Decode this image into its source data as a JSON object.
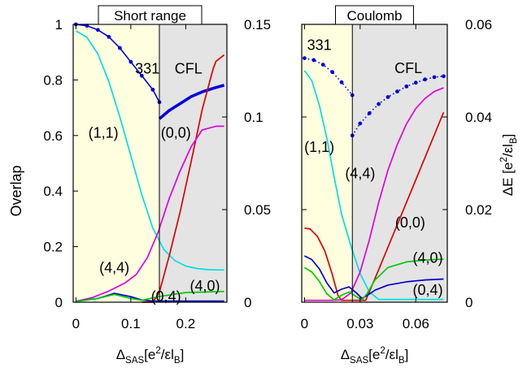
{
  "figure": {
    "left_axis_label": "Overlap",
    "right_axis_label": "ΔE [e²/εl_B]"
  },
  "chart_data": [
    {
      "type": "line",
      "title": "Short range",
      "xlabel": "Δ_SAS[e²/εl_B]",
      "xlim": [
        -0.005,
        0.275
      ],
      "ylim": [
        0,
        1
      ],
      "y2lim": [
        0,
        0.15
      ],
      "xticks": [
        0,
        0.1,
        0.2
      ],
      "xtick_labels": [
        "0",
        "0.1",
        "0.2"
      ],
      "yticks": [
        0,
        0.2,
        0.4,
        0.6,
        0.8,
        1
      ],
      "ytick_labels": [
        "0",
        "0.2",
        "0.4",
        "0.6",
        "0.8",
        "1"
      ],
      "y2ticks": [
        0,
        0.05,
        0.1,
        0.15
      ],
      "y2tick_labels": [
        "0",
        "0.05",
        "0.1",
        "0.15"
      ],
      "transition_x": 0.152,
      "region_colors": {
        "left": "#ffffe0",
        "right": "#e4e4e4"
      },
      "region_labels": [
        {
          "text": "331",
          "x": 0.13,
          "y": 0.84
        },
        {
          "text": "CFL",
          "x": 0.205,
          "y": 0.84
        }
      ],
      "annotations": [
        {
          "text": "(1,1)",
          "x": 0.05,
          "y": 0.61
        },
        {
          "text": "(0,0)",
          "x": 0.182,
          "y": 0.61
        },
        {
          "text": "(4,4)",
          "x": 0.07,
          "y": 0.125
        },
        {
          "text": "(0,4)",
          "x": 0.164,
          "y": 0.02
        },
        {
          "text": "(4,0)",
          "x": 0.235,
          "y": 0.058
        }
      ],
      "series": [
        {
          "name": "331",
          "axis": "left",
          "color": "#0000dd",
          "marker": true,
          "x": [
            0,
            0.02,
            0.04,
            0.06,
            0.08,
            0.1,
            0.12,
            0.14,
            0.152
          ],
          "y": [
            1.0,
            0.995,
            0.98,
            0.955,
            0.915,
            0.865,
            0.815,
            0.765,
            0.72
          ]
        },
        {
          "name": "CFL",
          "axis": "left",
          "color": "#0000dd",
          "marker": false,
          "thick": true,
          "x": [
            0.152,
            0.17,
            0.19,
            0.21,
            0.23,
            0.25,
            0.27
          ],
          "y": [
            0.66,
            0.69,
            0.715,
            0.74,
            0.757,
            0.77,
            0.781
          ]
        },
        {
          "name": "(1,1)",
          "axis": "right",
          "color": "#00e0e0",
          "x": [
            0,
            0.02,
            0.04,
            0.06,
            0.08,
            0.1,
            0.12,
            0.14,
            0.16,
            0.18,
            0.2,
            0.22,
            0.24,
            0.26,
            0.27
          ],
          "y": [
            0.1465,
            0.143,
            0.134,
            0.119,
            0.1,
            0.079,
            0.058,
            0.04,
            0.0285,
            0.0225,
            0.0195,
            0.0182,
            0.0176,
            0.0174,
            0.0174
          ]
        },
        {
          "name": "(0,0)",
          "axis": "right",
          "color": "#dd0000",
          "x": [
            0.12,
            0.14,
            0.152,
            0.17,
            0.19,
            0.21,
            0.23,
            0.25,
            0.255,
            0.27
          ],
          "y": [
            0.0,
            0.0,
            0.0055,
            0.025,
            0.049,
            0.076,
            0.104,
            0.126,
            0.13,
            0.1335
          ]
        },
        {
          "name": "(4,4)",
          "axis": "right",
          "color": "#dd00dd",
          "x": [
            0,
            0.03,
            0.06,
            0.09,
            0.11,
            0.13,
            0.15,
            0.17,
            0.19,
            0.21,
            0.23,
            0.255,
            0.27
          ],
          "y": [
            0.0005,
            0.0025,
            0.006,
            0.0105,
            0.015,
            0.024,
            0.038,
            0.056,
            0.071,
            0.084,
            0.093,
            0.095,
            0.095
          ]
        },
        {
          "name": "(0,4)",
          "axis": "right",
          "color": "#0000cc",
          "x": [
            0,
            0.04,
            0.07,
            0.1,
            0.12,
            0.14,
            0.16,
            0.2,
            0.27
          ],
          "y": [
            0.0005,
            0.002,
            0.0048,
            0.003,
            0.0012,
            0.0006,
            0.0006,
            0.0006,
            0.0006
          ]
        },
        {
          "name": "(4,0)",
          "axis": "right",
          "color": "#00cc00",
          "x": [
            0,
            0.04,
            0.07,
            0.1,
            0.12,
            0.15,
            0.2,
            0.27
          ],
          "y": [
            0.0004,
            0.002,
            0.0042,
            0.002,
            0.001,
            0.003,
            0.0052,
            0.0058
          ]
        }
      ]
    },
    {
      "type": "line",
      "title": "Coulomb",
      "xlabel": "Δ_SAS[e²/εl_B]",
      "xlim": [
        -0.0015,
        0.077
      ],
      "ylim": [
        0,
        0.06
      ],
      "xticks": [
        0,
        0.03,
        0.06
      ],
      "xtick_labels": [
        "0",
        "0.03",
        "0.06"
      ],
      "yticks": [
        0,
        0.02,
        0.04,
        0.06
      ],
      "ytick_labels": [
        "0",
        "0.02",
        "0.04",
        "0.06"
      ],
      "transition_x": 0.0258,
      "region_colors": {
        "left": "#ffffe0",
        "right": "#e4e4e4"
      },
      "region_labels": [
        {
          "text": "331",
          "x": 0.008,
          "y": 0.0555
        },
        {
          "text": "CFL",
          "x": 0.056,
          "y": 0.0505
        }
      ],
      "annotations": [
        {
          "text": "(1,1)",
          "x": 0.008,
          "y": 0.0335
        },
        {
          "text": "(4,4)",
          "x": 0.03,
          "y": 0.0278
        },
        {
          "text": "(0,0)",
          "x": 0.057,
          "y": 0.0172
        },
        {
          "text": "(4,0)",
          "x": 0.0665,
          "y": 0.0096
        },
        {
          "text": "(0,4)",
          "x": 0.0665,
          "y": 0.0026
        }
      ],
      "series": [
        {
          "name": "331",
          "axis": "left",
          "color": "#0000dd",
          "marker": true,
          "dotted": true,
          "x": [
            0,
            0.005,
            0.01,
            0.015,
            0.02,
            0.0258
          ],
          "y": [
            0.0527,
            0.0523,
            0.0513,
            0.0497,
            0.0475,
            0.0447
          ]
        },
        {
          "name": "CFL",
          "axis": "left",
          "color": "#0000dd",
          "marker": true,
          "dotted": true,
          "x": [
            0.0258,
            0.03,
            0.035,
            0.04,
            0.045,
            0.05,
            0.055,
            0.06,
            0.065,
            0.07,
            0.075
          ],
          "y": [
            0.036,
            0.0386,
            0.0408,
            0.0428,
            0.0443,
            0.0455,
            0.0466,
            0.0474,
            0.0481,
            0.0486,
            0.0488
          ]
        },
        {
          "name": "(1,1)",
          "axis": "left",
          "color": "#00e0e0",
          "x": [
            0,
            0.004,
            0.008,
            0.012,
            0.016,
            0.02,
            0.025,
            0.03,
            0.035,
            0.04,
            0.05,
            0.06,
            0.075
          ],
          "y": [
            0.05,
            0.0478,
            0.0425,
            0.0355,
            0.027,
            0.019,
            0.0122,
            0.0062,
            0.0022,
            0.0006,
            0.0006,
            0.0006,
            0.0006
          ]
        },
        {
          "name": "(0,0)",
          "axis": "left",
          "color": "#dd0000",
          "x": [
            0,
            0.003,
            0.007,
            0.011,
            0.015,
            0.018,
            0.02,
            0.025,
            0.03,
            0.033,
            0.04,
            0.05,
            0.06,
            0.07,
            0.075
          ],
          "y": [
            0.016,
            0.0158,
            0.0142,
            0.011,
            0.006,
            0.0015,
            0.0004,
            0.0004,
            0.0004,
            0.0004,
            0.007,
            0.0167,
            0.0264,
            0.0361,
            0.041
          ]
        },
        {
          "name": "(4,4)",
          "axis": "left",
          "color": "#dd00dd",
          "x": [
            0,
            0.015,
            0.02,
            0.025,
            0.03,
            0.035,
            0.04,
            0.045,
            0.05,
            0.055,
            0.06,
            0.065,
            0.07,
            0.075
          ],
          "y": [
            0.0004,
            0.0004,
            0.0005,
            0.002,
            0.0065,
            0.0135,
            0.0215,
            0.0285,
            0.034,
            0.0385,
            0.0418,
            0.044,
            0.0455,
            0.0463
          ]
        },
        {
          "name": "(0,4)",
          "axis": "left",
          "color": "#0000cc",
          "x": [
            0,
            0.004,
            0.008,
            0.012,
            0.016,
            0.02,
            0.024,
            0.028,
            0.031,
            0.034,
            0.038,
            0.045,
            0.055,
            0.065,
            0.075
          ],
          "y": [
            0.01,
            0.0092,
            0.0072,
            0.0042,
            0.002,
            0.0028,
            0.0033,
            0.002,
            0.0008,
            0.0015,
            0.0026,
            0.0037,
            0.0044,
            0.0048,
            0.005
          ]
        },
        {
          "name": "(4,0)",
          "axis": "left",
          "color": "#00cc00",
          "x": [
            0,
            0.004,
            0.008,
            0.012,
            0.016,
            0.02,
            0.024,
            0.028,
            0.031,
            0.034,
            0.038,
            0.045,
            0.055,
            0.065,
            0.075
          ],
          "y": [
            0.0075,
            0.0065,
            0.0045,
            0.0018,
            0.0005,
            0.0015,
            0.0022,
            0.0012,
            0.0005,
            0.002,
            0.0048,
            0.0075,
            0.0087,
            0.0091,
            0.0093
          ]
        }
      ]
    }
  ]
}
